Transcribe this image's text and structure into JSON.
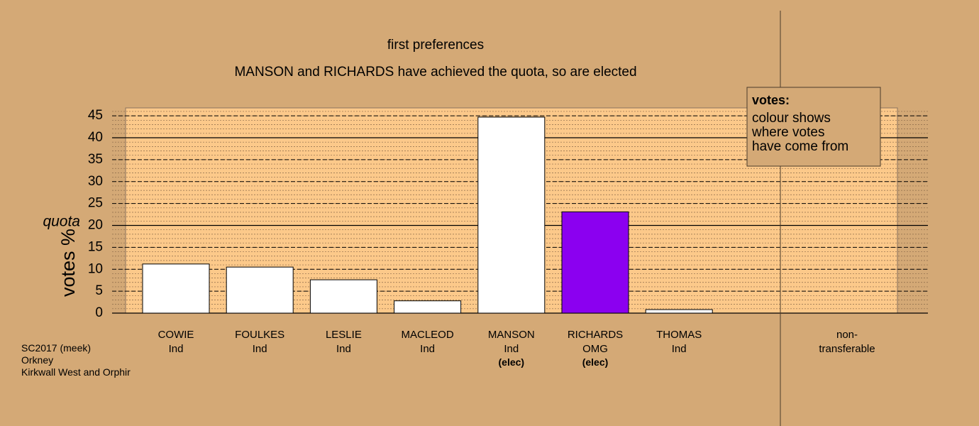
{
  "chart_data": {
    "type": "bar",
    "title": "first preferences",
    "subtitle": "MANSON and RICHARDS have achieved the quota, so are elected",
    "y_label": "votes %",
    "categories": [
      "COWIE",
      "FOULKES",
      "LESLIE",
      "MACLEOD",
      "MANSON",
      "RICHARDS",
      "THOMAS",
      "non-\ntransferable"
    ],
    "parties": [
      "Ind",
      "Ind",
      "Ind",
      "Ind",
      "Ind",
      "OMG",
      "Ind",
      null
    ],
    "status": [
      null,
      null,
      null,
      null,
      "(elec)",
      "(elec)",
      null,
      null
    ],
    "values": [
      11.2,
      10.5,
      7.6,
      2.8,
      44.7,
      23.1,
      0.8,
      0
    ],
    "colors": [
      "#ffffff",
      "#ffffff",
      "#ffffff",
      "#ffffff",
      "#ffffff",
      "#8b00f0",
      "#ffffff",
      "#ffffff"
    ],
    "ylim": [
      0,
      46.8
    ],
    "yticks": [
      0,
      5,
      10,
      15,
      20,
      25,
      30,
      35,
      40,
      45
    ],
    "minor_grid": 1,
    "quota": 20,
    "quota_label": "quota",
    "legend": {
      "title": "votes:",
      "text": "colour shows\nwhere votes\nhave come from"
    },
    "footnote": [
      "SC2017 (meek)",
      "Orkney",
      "Kirkwall West and Orphir"
    ]
  }
}
